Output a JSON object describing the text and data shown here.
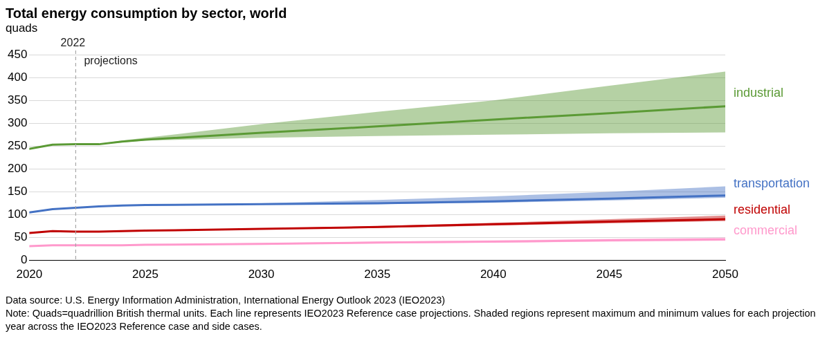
{
  "chart_data": {
    "type": "line",
    "title": "Total energy consumption by sector, world",
    "ylabel": "quads",
    "xlim": [
      2020,
      2050
    ],
    "xticks": [
      2020,
      2025,
      2030,
      2035,
      2040,
      2045,
      2050
    ],
    "ylim": [
      0,
      450
    ],
    "yticks": [
      0,
      50,
      100,
      150,
      200,
      250,
      300,
      350,
      400,
      450
    ],
    "grid": "y",
    "legend": false,
    "marker": "none",
    "line_style": "solid",
    "series": [
      {
        "name": "industrial",
        "color": "#5b9a35",
        "x": [
          2020,
          2021,
          2022,
          2023,
          2024,
          2025,
          2030,
          2035,
          2040,
          2045,
          2050
        ],
        "values": [
          244,
          253,
          254,
          254,
          260,
          264,
          279,
          293,
          308,
          322,
          337
        ],
        "lower": [
          null,
          null,
          254,
          254,
          258,
          262,
          268,
          272,
          275,
          278,
          280
        ],
        "upper": [
          null,
          null,
          254,
          255,
          262,
          268,
          298,
          325,
          350,
          382,
          413
        ]
      },
      {
        "name": "transportation",
        "color": "#4472c4",
        "x": [
          2020,
          2021,
          2022,
          2023,
          2024,
          2025,
          2030,
          2035,
          2040,
          2045,
          2050
        ],
        "values": [
          105,
          112,
          115,
          118,
          120,
          121,
          123,
          125,
          129,
          135,
          142
        ],
        "lower": [
          null,
          null,
          115,
          118,
          120,
          120,
          122,
          123,
          126,
          131,
          137
        ],
        "upper": [
          null,
          null,
          115,
          118,
          120,
          122,
          125,
          132,
          140,
          150,
          162
        ]
      },
      {
        "name": "residential",
        "color": "#c00000",
        "x": [
          2020,
          2021,
          2022,
          2023,
          2024,
          2025,
          2030,
          2035,
          2040,
          2045,
          2050
        ],
        "values": [
          60,
          64,
          63,
          63,
          64,
          65,
          69,
          73,
          79,
          85,
          90
        ],
        "lower": [
          null,
          null,
          63,
          63,
          64,
          65,
          68,
          71,
          76,
          81,
          86
        ],
        "upper": [
          null,
          null,
          63,
          63,
          64,
          66,
          70,
          75,
          82,
          90,
          98
        ]
      },
      {
        "name": "commercial",
        "color": "#ff99cc",
        "x": [
          2020,
          2021,
          2022,
          2023,
          2024,
          2025,
          2030,
          2035,
          2040,
          2045,
          2050
        ],
        "values": [
          31,
          33,
          33,
          33,
          33,
          34,
          36,
          39,
          41,
          44,
          46
        ],
        "lower": [
          null,
          null,
          33,
          33,
          33,
          33,
          35,
          37,
          39,
          41,
          43
        ],
        "upper": [
          null,
          null,
          33,
          33,
          34,
          35,
          38,
          41,
          44,
          47,
          50
        ]
      }
    ],
    "ref_lines": [
      {
        "axis": "x",
        "value": 2022,
        "label": "2022",
        "color": "#a6a6a6",
        "line_style": "dashed"
      }
    ],
    "annotations": [
      {
        "text": "projections",
        "x": 2022,
        "y": 435
      },
      "Data source: U.S. Energy Information Administration, International Energy Outlook 2023 (IEO2023)",
      "Note: Quads=quadrillion British thermal units. Each line represents IEO2023 Reference case projections. Shaded regions represent maximum and minimum values for each projection year across the IEO2023 Reference case and side cases."
    ]
  }
}
